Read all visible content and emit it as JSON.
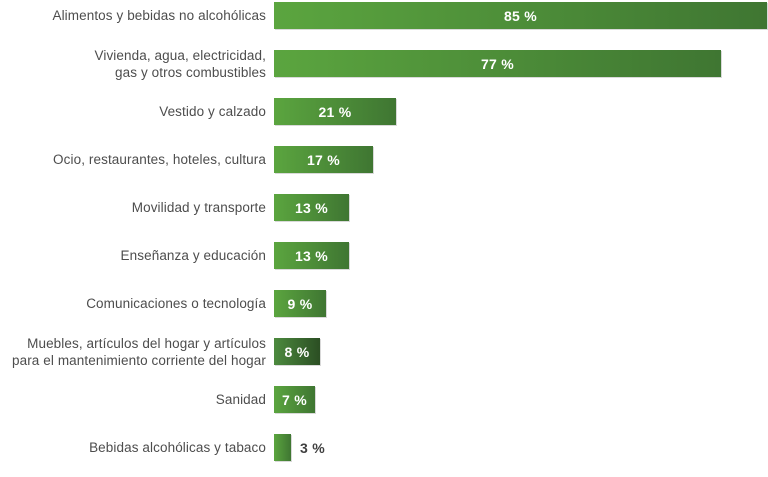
{
  "chart_data": {
    "type": "bar",
    "orientation": "horizontal",
    "title": "",
    "xlabel": "",
    "ylabel": "",
    "xlim": [
      0,
      85
    ],
    "grid": false,
    "legend": false,
    "value_unit": "%",
    "categories": [
      "Alimentos y bebidas no alcohólicas",
      "Vivienda, agua, electricidad,\ngas y otros combustibles",
      "Vestido y calzado",
      "Ocio, restaurantes, hoteles, cultura",
      "Movilidad y transporte",
      "Enseñanza y educación",
      "Comunicaciones o tecnología",
      "Muebles, artículos del hogar y artículos\npara el mantenimiento corriente del hogar",
      "Sanidad",
      "Bebidas alcohólicas y tabaco"
    ],
    "values": [
      85,
      77,
      21,
      17,
      13,
      13,
      9,
      8,
      7,
      3
    ],
    "items": [
      {
        "label": "Alimentos y bebidas no alcohólicas",
        "value": 85,
        "value_label": "85 %",
        "bar_style": "default",
        "label_position": "inside"
      },
      {
        "label": "Vivienda, agua, electricidad,\ngas y otros combustibles",
        "value": 77,
        "value_label": "77 %",
        "bar_style": "default",
        "label_position": "inside"
      },
      {
        "label": "Vestido y calzado",
        "value": 21,
        "value_label": "21 %",
        "bar_style": "default",
        "label_position": "inside"
      },
      {
        "label": "Ocio, restaurantes, hoteles, cultura",
        "value": 17,
        "value_label": "17 %",
        "bar_style": "default",
        "label_position": "inside"
      },
      {
        "label": "Movilidad y transporte",
        "value": 13,
        "value_label": "13 %",
        "bar_style": "default",
        "label_position": "inside"
      },
      {
        "label": "Enseñanza y educación",
        "value": 13,
        "value_label": "13 %",
        "bar_style": "default",
        "label_position": "inside"
      },
      {
        "label": "Comunicaciones o tecnología",
        "value": 9,
        "value_label": "9 %",
        "bar_style": "default",
        "label_position": "inside"
      },
      {
        "label": "Muebles, artículos del hogar y artículos\npara el mantenimiento corriente del hogar",
        "value": 8,
        "value_label": "8 %",
        "bar_style": "dark",
        "label_position": "inside"
      },
      {
        "label": "Sanidad",
        "value": 7,
        "value_label": "7 %",
        "bar_style": "default",
        "label_position": "inside"
      },
      {
        "label": "Bebidas alcohólicas y tabaco",
        "value": 3,
        "value_label": "3 %",
        "bar_style": "default",
        "label_position": "outside"
      }
    ]
  },
  "colors": {
    "background": "#ffffff",
    "bar_gradient_start": "#5ba53f",
    "bar_gradient_end": "#3f7632",
    "dark_bar_gradient_start": "#4c8a3e",
    "dark_bar_gradient_end": "#2b4e23",
    "category_label_text": "#4d4d4d",
    "value_label_inside": "#ffffff",
    "value_label_outside": "#3f3f3f"
  }
}
